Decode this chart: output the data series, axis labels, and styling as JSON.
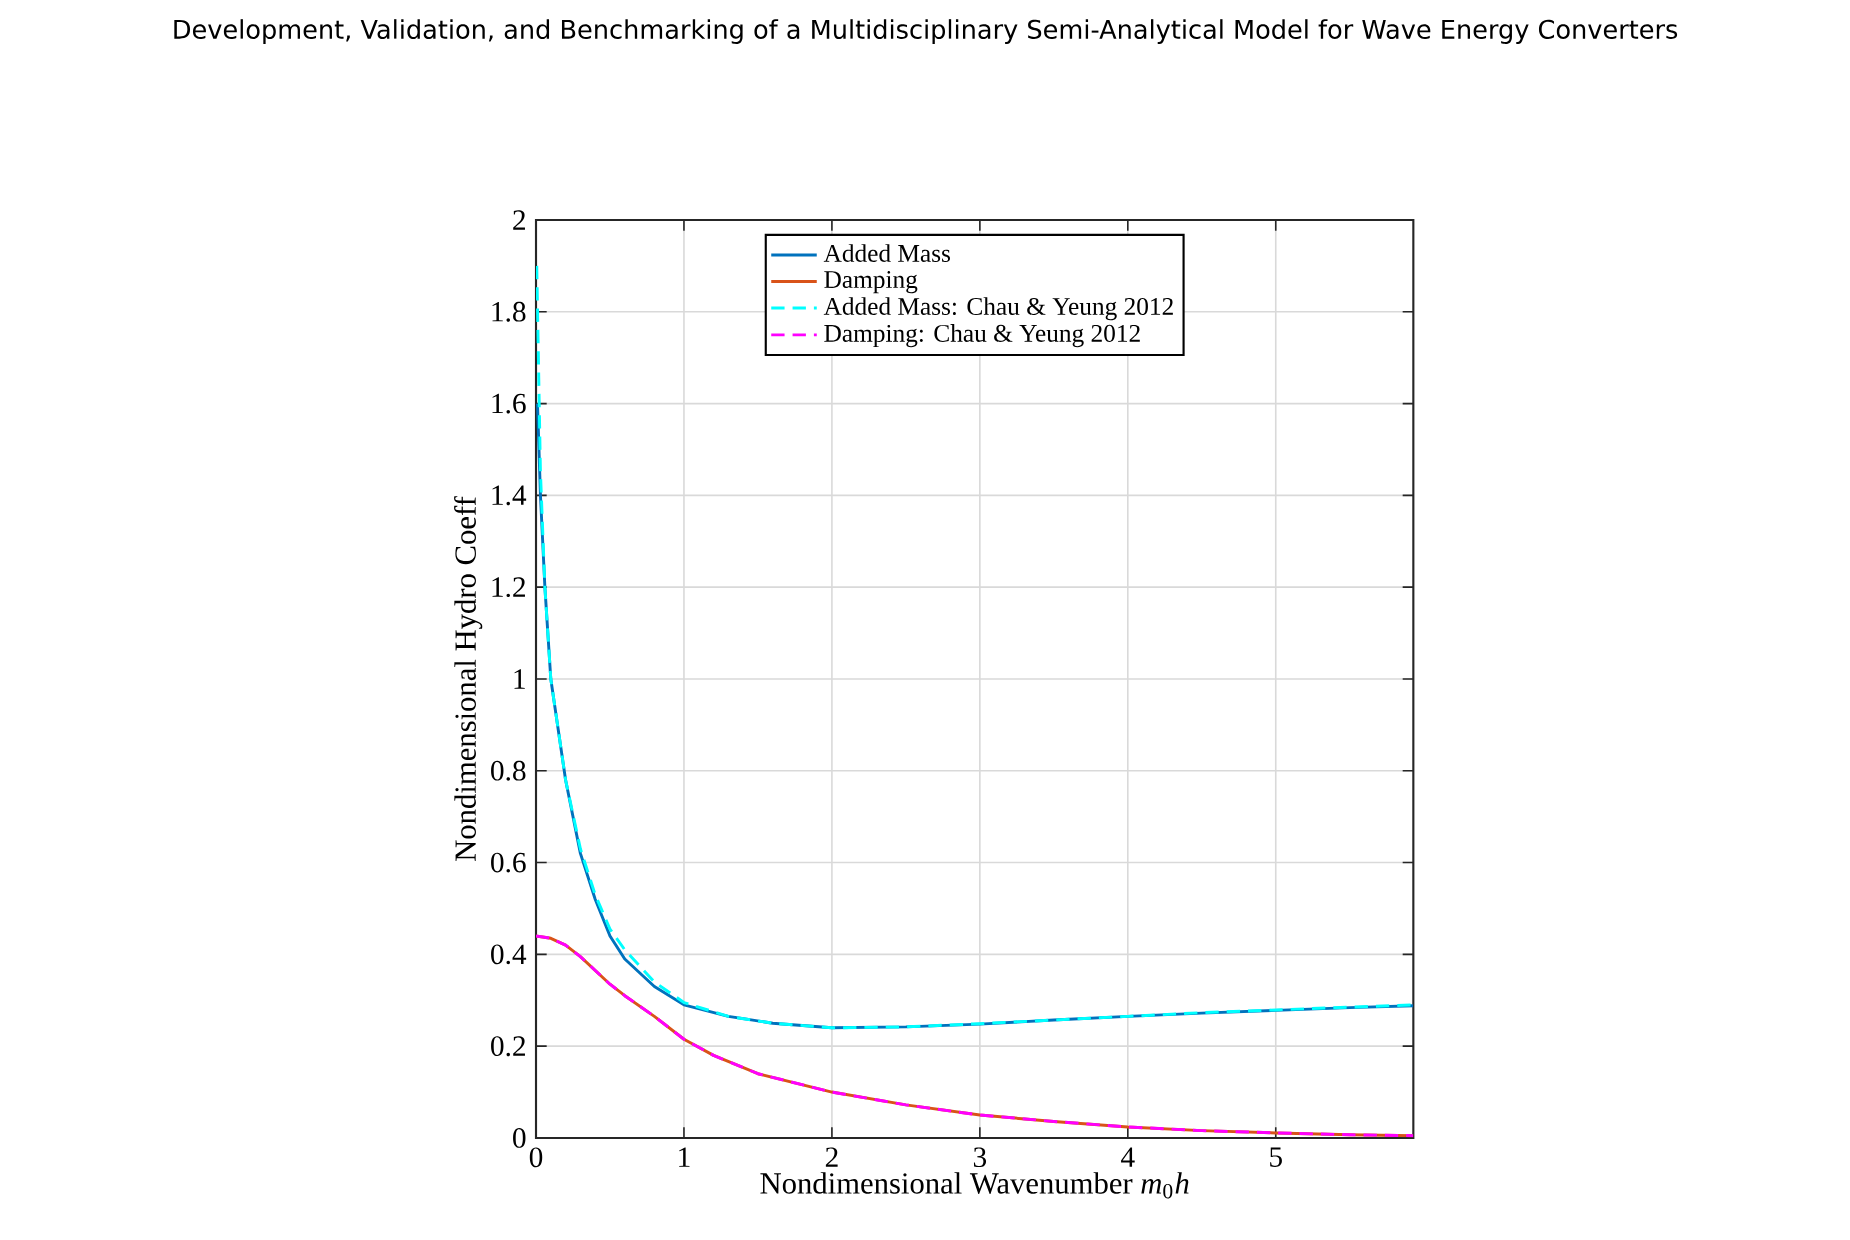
{
  "chart_data": {
    "type": "line",
    "title": "Development, Validation, and Benchmarking of a Multidisciplinary Semi-Analytical Model for Wave Energy Converters",
    "xlabel": "Nondimensional Wavenumber *m*$_{0}$*h*",
    "ylabel": "Nondimensional Hydro Coeff",
    "xlim": [
      0,
      5.93
    ],
    "ylim": [
      0,
      2
    ],
    "xticks": [
      0,
      1,
      2,
      3,
      4,
      5
    ],
    "yticks": [
      0,
      0.2,
      0.4,
      0.6,
      0.8,
      1,
      1.2,
      1.4,
      1.6,
      1.8,
      2
    ],
    "grid": true,
    "legend": "top",
    "marker": "none",
    "series": [
      {
        "name": "Added Mass",
        "color": "#0072bd",
        "line_style": "solid",
        "x": [
          0.01,
          0.03,
          0.06,
          0.1,
          0.2,
          0.3,
          0.4,
          0.5,
          0.6,
          0.8,
          1.0,
          1.3,
          1.6,
          2.0,
          2.5,
          3.0,
          3.5,
          4.0,
          4.5,
          5.0,
          5.5,
          5.93
        ],
        "values": [
          1.6,
          1.4,
          1.2,
          1.0,
          0.78,
          0.62,
          0.52,
          0.44,
          0.39,
          0.33,
          0.29,
          0.265,
          0.25,
          0.24,
          0.242,
          0.248,
          0.257,
          0.265,
          0.272,
          0.278,
          0.284,
          0.288
        ]
      },
      {
        "name": "Damping",
        "color": "#d95319",
        "line_style": "solid",
        "x": [
          0,
          0.1,
          0.2,
          0.3,
          0.4,
          0.5,
          0.6,
          0.8,
          1.0,
          1.2,
          1.5,
          2.0,
          2.5,
          3.0,
          3.5,
          4.0,
          4.5,
          5.0,
          5.5,
          5.93
        ],
        "values": [
          0.44,
          0.435,
          0.42,
          0.395,
          0.365,
          0.335,
          0.31,
          0.265,
          0.215,
          0.18,
          0.14,
          0.1,
          0.072,
          0.05,
          0.036,
          0.024,
          0.016,
          0.011,
          0.007,
          0.005
        ]
      },
      {
        "name": "Added Mass: Chau & Yeung 2012",
        "color": "#00ffff",
        "line_style": "dashed",
        "x": [
          0.005,
          0.03,
          0.06,
          0.1,
          0.2,
          0.3,
          0.4,
          0.5,
          0.6,
          0.8,
          1.0,
          1.3,
          1.6,
          2.0,
          2.5,
          3.0,
          3.5,
          4.0,
          4.5,
          5.0,
          5.5,
          5.93
        ],
        "values": [
          1.9,
          1.45,
          1.2,
          1.0,
          0.78,
          0.63,
          0.53,
          0.455,
          0.41,
          0.34,
          0.295,
          0.265,
          0.25,
          0.24,
          0.242,
          0.249,
          0.257,
          0.265,
          0.273,
          0.279,
          0.285,
          0.29
        ]
      },
      {
        "name": "Damping: Chau & Yeung 2012",
        "color": "#ff00ff",
        "line_style": "dashed",
        "x": [
          0,
          0.1,
          0.2,
          0.3,
          0.4,
          0.5,
          0.6,
          0.8,
          1.0,
          1.2,
          1.5,
          2.0,
          2.5,
          3.0,
          3.5,
          4.0,
          4.5,
          5.0,
          5.5,
          5.93
        ],
        "values": [
          0.44,
          0.435,
          0.42,
          0.395,
          0.365,
          0.335,
          0.31,
          0.265,
          0.215,
          0.18,
          0.14,
          0.1,
          0.072,
          0.05,
          0.036,
          0.024,
          0.016,
          0.011,
          0.007,
          0.005
        ]
      }
    ]
  }
}
